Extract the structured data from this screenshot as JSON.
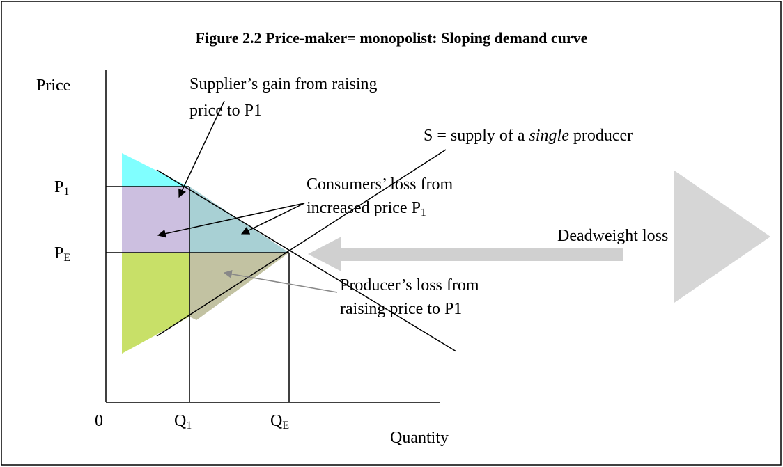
{
  "title": "Figure 2.2 Price-maker= monopolist: Sloping demand curve",
  "axes": {
    "y_label": "Price",
    "x_label": "Quantity",
    "origin": "0"
  },
  "ticks": {
    "p1": {
      "main": "P",
      "sub": "1"
    },
    "pe": {
      "main": "P",
      "sub": "E"
    },
    "q1": {
      "main": "Q",
      "sub": "1"
    },
    "qe": {
      "main": "Q",
      "sub": "E"
    }
  },
  "annotations": {
    "supplier_gain": [
      "Supplier’s gain from raising",
      "price to P1"
    ],
    "supply": {
      "before": "S = supply of a ",
      "italic": "single",
      "after": " producer"
    },
    "consumer_loss": {
      "line1": "Consumers’ loss from",
      "line2": "increased price P",
      "sub": "1"
    },
    "deadweight": "Deadweight loss",
    "producer_loss": [
      "Producer’s loss from",
      "raising price to P1"
    ]
  }
}
